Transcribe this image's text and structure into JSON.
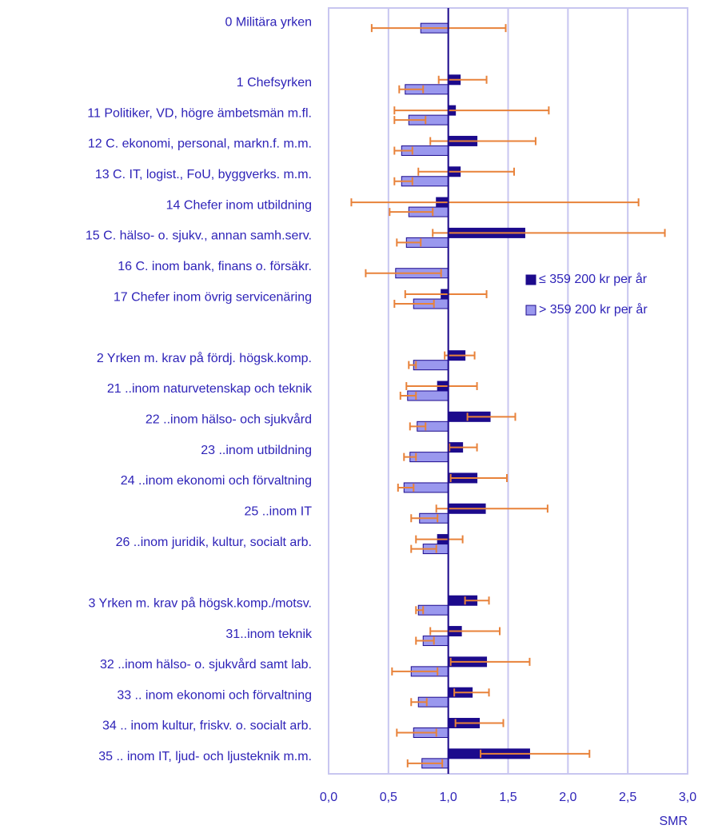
{
  "chart_data": {
    "type": "bar",
    "orientation": "horizontal",
    "x_label": "SMR",
    "categories": [
      "0 Militära yrken",
      null,
      "1 Chefsyrken",
      "11 Politiker, VD, högre ämbetsmän m.fl.",
      "12 C. ekonomi, personal, markn.f.  m.m.",
      "13 C. IT, logist., FoU,  byggverks. m.m.",
      "14 Chefer inom utbildning",
      "15 C. hälso- o. sjukv., annan samh.serv.",
      "16 C. inom bank, finans o. försäkr.",
      "17 Chefer inom övrig servicenäring",
      null,
      "2 Yrken m. krav på fördj. högsk.komp.",
      "21 ..inom naturvetenskap och teknik",
      "22 ..inom hälso- och sjukvård",
      "23 ..inom utbildning",
      "24 ..inom ekonomi och förvaltning",
      "25 ..inom IT",
      "26 ..inom juridik, kultur, socialt arb.",
      null,
      "3 Yrken m. krav på högsk.komp./motsv.",
      "31..inom teknik",
      "32 ..inom hälso- o. sjukvård samt lab.",
      "33 .. inom ekonomi och förvaltning",
      "34 .. inom kultur, friskv. o. socialt arb.",
      "35 .. inom IT, ljud- och ljusteknik m.m."
    ],
    "series": [
      {
        "name": "≤ 359 200 kr per år",
        "color": "#1c0a8c",
        "values": [
          null,
          null,
          1.1,
          1.06,
          1.24,
          1.1,
          0.9,
          1.64,
          null,
          0.94,
          null,
          1.14,
          0.91,
          1.35,
          1.12,
          1.24,
          1.31,
          0.91,
          null,
          1.24,
          1.11,
          1.32,
          1.2,
          1.26,
          1.68
        ],
        "lower": [
          null,
          null,
          0.92,
          0.55,
          0.85,
          0.75,
          0.19,
          0.87,
          null,
          0.64,
          null,
          0.97,
          0.65,
          1.16,
          1.01,
          1.02,
          0.9,
          0.73,
          null,
          1.14,
          0.85,
          1.02,
          1.05,
          1.06,
          1.27
        ],
        "upper": [
          null,
          null,
          1.32,
          1.84,
          1.73,
          1.55,
          2.59,
          2.81,
          null,
          1.32,
          null,
          1.22,
          1.24,
          1.56,
          1.24,
          1.49,
          1.83,
          1.12,
          null,
          1.34,
          1.43,
          1.68,
          1.34,
          1.46,
          2.18
        ]
      },
      {
        "name": "> 359 200 kr per år",
        "color": "#9a98ee",
        "values": [
          0.77,
          null,
          0.64,
          0.67,
          0.61,
          0.61,
          0.67,
          0.65,
          0.56,
          0.71,
          null,
          0.71,
          0.66,
          0.74,
          0.68,
          0.63,
          0.76,
          0.79,
          null,
          0.75,
          0.79,
          0.69,
          0.75,
          0.71,
          0.78
        ],
        "lower": [
          0.36,
          null,
          0.59,
          0.55,
          0.55,
          0.55,
          0.51,
          0.57,
          0.31,
          0.55,
          null,
          0.67,
          0.6,
          0.68,
          0.63,
          0.58,
          0.69,
          0.69,
          null,
          0.73,
          0.73,
          0.53,
          0.69,
          0.57,
          0.66
        ],
        "upper": [
          1.48,
          null,
          0.79,
          0.81,
          0.7,
          0.7,
          0.87,
          0.77,
          0.94,
          0.88,
          null,
          0.73,
          0.73,
          0.81,
          0.73,
          0.71,
          0.91,
          0.9,
          null,
          0.79,
          0.88,
          0.91,
          0.82,
          0.9,
          0.95
        ]
      }
    ],
    "error_color": "#e8823a",
    "reference_line": 1,
    "xlim": [
      0,
      3
    ],
    "xticks": [
      {
        "value": 0,
        "label": "0,0"
      },
      {
        "value": 0.5,
        "label": "0,5"
      },
      {
        "value": 1,
        "label": "1,0"
      },
      {
        "value": 1.5,
        "label": "1,5"
      },
      {
        "value": 2,
        "label": "2,0"
      },
      {
        "value": 2.5,
        "label": "2,5"
      },
      {
        "value": 3,
        "label": "3,0"
      }
    ],
    "grid": true,
    "legend": "center right"
  }
}
